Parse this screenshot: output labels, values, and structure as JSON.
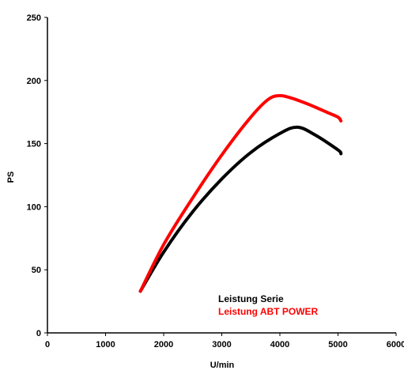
{
  "chart_data": {
    "type": "line",
    "xlabel": "U/min",
    "ylabel": "PS",
    "xlim": [
      0,
      6000
    ],
    "ylim": [
      0,
      250
    ],
    "xticks": [
      0,
      1000,
      2000,
      3000,
      4000,
      5000,
      6000
    ],
    "yticks": [
      0,
      50,
      100,
      150,
      200,
      250
    ],
    "grid": false,
    "legend_position": "bottom-right",
    "series": [
      {
        "name": "Leistung Serie",
        "color": "#000000",
        "x": [
          1600,
          2000,
          2500,
          3000,
          3500,
          4000,
          4300,
          4600,
          5000,
          5050
        ],
        "y": [
          33,
          64,
          96,
          122,
          143,
          158,
          163,
          157,
          145,
          142
        ]
      },
      {
        "name": "Leistung ABT POWER",
        "color": "#ff0000",
        "x": [
          1600,
          2000,
          2500,
          3000,
          3500,
          3800,
          4000,
          4200,
          4500,
          4800,
          5000,
          5050
        ],
        "y": [
          33,
          70,
          107,
          141,
          171,
          185,
          188,
          186,
          181,
          175,
          171,
          168
        ]
      }
    ]
  }
}
